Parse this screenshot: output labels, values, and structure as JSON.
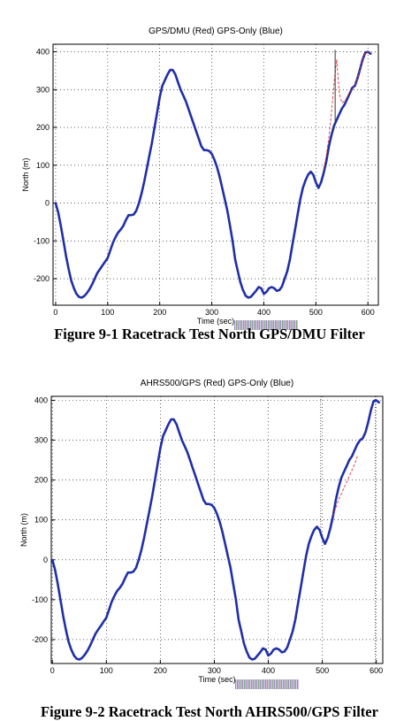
{
  "figures": [
    {
      "caption": "Figure 9-1 Racetrack Test North GPS/DMU Filter",
      "chart_data": {
        "type": "line",
        "title": "GPS/DMU (Red) GPS-Only (Blue)",
        "xlabel": "Time (sec)",
        "ylabel": "North (m)",
        "xlim": [
          -5,
          620
        ],
        "ylim": [
          -270,
          420
        ],
        "xticks": [
          0,
          100,
          200,
          300,
          400,
          500,
          600
        ],
        "yticks": [
          -200,
          -100,
          0,
          100,
          200,
          300,
          400
        ],
        "grid": true,
        "series": [
          {
            "color": "#1f2fa8",
            "x": [
              0,
              5,
              10,
              15,
              20,
              25,
              30,
              35,
              40,
              45,
              50,
              55,
              60,
              65,
              70,
              75,
              80,
              85,
              90,
              95,
              100,
              105,
              110,
              115,
              120,
              125,
              130,
              135,
              140,
              145,
              150,
              155,
              160,
              165,
              170,
              175,
              180,
              185,
              190,
              195,
              200,
              205,
              210,
              215,
              220,
              225,
              230,
              235,
              240,
              245,
              250,
              255,
              260,
              265,
              270,
              275,
              280,
              285,
              290,
              295,
              300,
              305,
              310,
              315,
              320,
              325,
              330,
              335,
              340,
              345,
              350,
              355,
              360,
              365,
              370,
              375,
              380,
              385,
              390,
              395,
              400,
              405,
              410,
              415,
              420,
              425,
              430,
              435,
              440,
              445,
              450,
              455,
              460,
              465,
              470,
              475,
              480,
              485,
              490,
              495,
              500,
              505,
              510,
              515,
              520,
              525,
              530,
              535,
              540,
              545,
              550,
              555,
              560,
              565,
              570,
              575,
              580,
              585,
              590,
              595,
              600,
              605
            ],
            "y": [
              0,
              -25,
              -60,
              -100,
              -140,
              -175,
              -205,
              -225,
              -240,
              -248,
              -250,
              -246,
              -238,
              -228,
              -215,
              -200,
              -185,
              -175,
              -165,
              -155,
              -145,
              -125,
              -105,
              -90,
              -78,
              -70,
              -60,
              -45,
              -32,
              -32,
              -30,
              -20,
              0,
              25,
              55,
              90,
              125,
              160,
              200,
              240,
              280,
              310,
              325,
              340,
              352,
              352,
              340,
              320,
              300,
              285,
              270,
              250,
              230,
              210,
              190,
              170,
              150,
              140,
              140,
              138,
              130,
              115,
              95,
              70,
              40,
              10,
              -20,
              -60,
              -100,
              -150,
              -180,
              -210,
              -230,
              -245,
              -250,
              -248,
              -240,
              -232,
              -222,
              -225,
              -240,
              -235,
              -225,
              -222,
              -225,
              -232,
              -230,
              -220,
              -200,
              -180,
              -150,
              -110,
              -70,
              -30,
              10,
              40,
              60,
              75,
              83,
              75,
              55,
              40,
              55,
              80,
              110,
              150,
              180,
              205,
              220,
              235,
              250,
              260,
              275,
              290,
              305,
              310,
              330,
              355,
              380,
              398,
              400,
              395
            ]
          },
          {
            "color": "#e03030",
            "x": [
              515,
              520,
              525,
              530,
              535,
              540,
              545,
              550,
              555,
              560,
              565,
              570,
              575,
              580,
              585,
              590,
              595,
              600,
              605
            ],
            "y": [
              90,
              125,
              175,
              240,
              320,
              380,
              290,
              265,
              270,
              280,
              295,
              300,
              310,
              330,
              355,
              380,
              398,
              400,
              395
            ]
          }
        ]
      }
    },
    {
      "caption": "Figure 9-2 Racetrack Test North AHRS500/GPS Filter",
      "chart_data": {
        "type": "line",
        "title": "AHRS500/GPS (Red) GPS-Only (Blue)",
        "xlabel": "Time (sec)",
        "ylabel": "North (m)",
        "xlim": [
          -2,
          612
        ],
        "ylim": [
          -260,
          410
        ],
        "xticks": [
          0,
          100,
          200,
          300,
          400,
          500,
          600
        ],
        "yticks": [
          -200,
          -100,
          0,
          100,
          200,
          300,
          400
        ],
        "grid": true,
        "series": [
          {
            "color": "#1f2fa8",
            "x": [
              0,
              5,
              10,
              15,
              20,
              25,
              30,
              35,
              40,
              45,
              50,
              55,
              60,
              65,
              70,
              75,
              80,
              85,
              90,
              95,
              100,
              105,
              110,
              115,
              120,
              125,
              130,
              135,
              140,
              145,
              150,
              155,
              160,
              165,
              170,
              175,
              180,
              185,
              190,
              195,
              200,
              205,
              210,
              215,
              220,
              225,
              230,
              235,
              240,
              245,
              250,
              255,
              260,
              265,
              270,
              275,
              280,
              285,
              290,
              295,
              300,
              305,
              310,
              315,
              320,
              325,
              330,
              335,
              340,
              345,
              350,
              355,
              360,
              365,
              370,
              375,
              380,
              385,
              390,
              395,
              400,
              405,
              410,
              415,
              420,
              425,
              430,
              435,
              440,
              445,
              450,
              455,
              460,
              465,
              470,
              475,
              480,
              485,
              490,
              495,
              500,
              505,
              510,
              515,
              520,
              525,
              530,
              535,
              540,
              545,
              550,
              555,
              560,
              565,
              570,
              575,
              580,
              585,
              590,
              595,
              600,
              605
            ],
            "y": [
              0,
              -25,
              -60,
              -100,
              -140,
              -175,
              -205,
              -225,
              -240,
              -248,
              -250,
              -246,
              -238,
              -228,
              -215,
              -200,
              -185,
              -175,
              -165,
              -155,
              -145,
              -125,
              -105,
              -90,
              -78,
              -70,
              -60,
              -45,
              -32,
              -32,
              -30,
              -20,
              0,
              25,
              55,
              90,
              125,
              160,
              200,
              240,
              280,
              310,
              325,
              340,
              352,
              352,
              340,
              320,
              300,
              285,
              270,
              250,
              230,
              210,
              190,
              170,
              150,
              140,
              140,
              138,
              130,
              115,
              95,
              70,
              40,
              10,
              -20,
              -60,
              -100,
              -150,
              -180,
              -210,
              -230,
              -245,
              -250,
              -248,
              -240,
              -232,
              -222,
              -225,
              -240,
              -235,
              -225,
              -222,
              -225,
              -232,
              -230,
              -220,
              -200,
              -180,
              -150,
              -110,
              -70,
              -30,
              10,
              40,
              60,
              75,
              83,
              75,
              55,
              40,
              55,
              80,
              110,
              150,
              180,
              205,
              220,
              235,
              250,
              260,
              275,
              290,
              300,
              305,
              320,
              345,
              375,
              398,
              400,
              395
            ]
          },
          {
            "color": "#e03030",
            "x": [
              520,
              525,
              530,
              535,
              540,
              545,
              550,
              555,
              560,
              565
            ],
            "y": [
              110,
              130,
              150,
              165,
              180,
              195,
              210,
              225,
              240,
              260
            ]
          }
        ]
      }
    }
  ]
}
